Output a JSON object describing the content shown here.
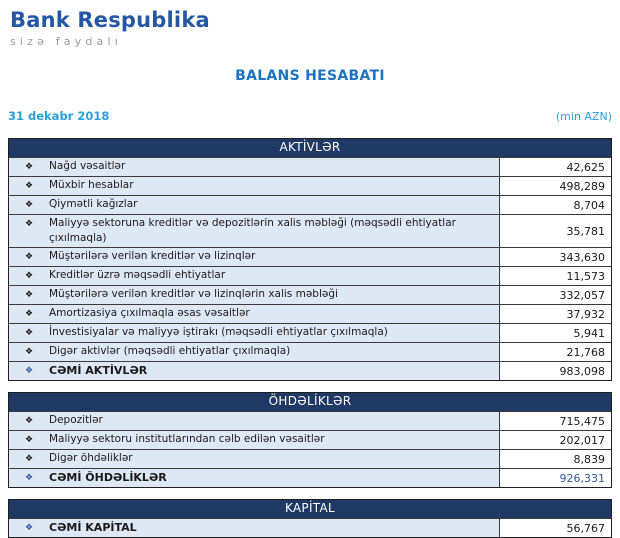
{
  "logo": {
    "title": "Bank Respublika",
    "tagline": "sizə faydalı"
  },
  "header": {
    "title": "BALANS HESABATI",
    "date": "31 dekabr 2018",
    "unit": "(min AZN)"
  },
  "bullet": "❖",
  "colors": {
    "logo_blue": "#2457A4",
    "title_blue": "#1B74BE",
    "meta_blue": "#29A0DB",
    "section_header_bg": "#1F3864",
    "label_cell_bg": "#DEE8F5",
    "total_value_blue": "#31599B"
  },
  "sections": [
    {
      "id": "aktivler",
      "title": "AKTİVLƏR",
      "rows": [
        {
          "label": "Nağd vəsaitlər",
          "value": "42,625"
        },
        {
          "label": "Müxbir hesablar",
          "value": "498,289"
        },
        {
          "label": "Qiymətli kağızlar",
          "value": "8,704"
        },
        {
          "label": "Maliyyə sektoruna kreditlər və depozitlərin xalis məbləği (məqsədli ehtiyatlar çıxılmaqla)",
          "value": "35,781"
        },
        {
          "label": "Müştərilərə verilən kreditlər və lizinqlər",
          "value": "343,630"
        },
        {
          "label": "Kreditlər üzrə məqsədli ehtiyatlar",
          "value": "11,573"
        },
        {
          "label": "Müştərilərə verilən kreditlər və lizinqlərin xalis məbləği",
          "value": "332,057"
        },
        {
          "label": "Amortizasiya çıxılmaqla əsas vəsaitlər",
          "value": "37,932"
        },
        {
          "label": "İnvestisiyalar və maliyyə iştirakı (məqsədli ehtiyatlar çıxılmaqla)",
          "value": "5,941"
        },
        {
          "label": "Digər aktivlər (məqsədli ehtiyatlar çıxılmaqla)",
          "value": "21,768"
        },
        {
          "label": "CƏMİ AKTİVLƏR",
          "value": "983,098",
          "bold": true
        }
      ]
    },
    {
      "id": "ohdelikler",
      "title": "ÖHDƏLİKLƏR",
      "rows": [
        {
          "label": "Depozitlər",
          "value": "715,475"
        },
        {
          "label": "Maliyyə sektoru institutlarından cəlb edilən vəsaitlər",
          "value": "202,017"
        },
        {
          "label": "Digər öhdəliklər",
          "value": "8,839"
        },
        {
          "label": "CƏMİ ÖHDƏLİKLƏR",
          "value": "926,331",
          "bold": true,
          "value_color": "#31599B"
        }
      ]
    },
    {
      "id": "kapital",
      "title": "KAPİTAL",
      "rows": [
        {
          "label": "CƏMİ KAPİTAL",
          "value": "56,767",
          "bold": true
        }
      ]
    }
  ]
}
